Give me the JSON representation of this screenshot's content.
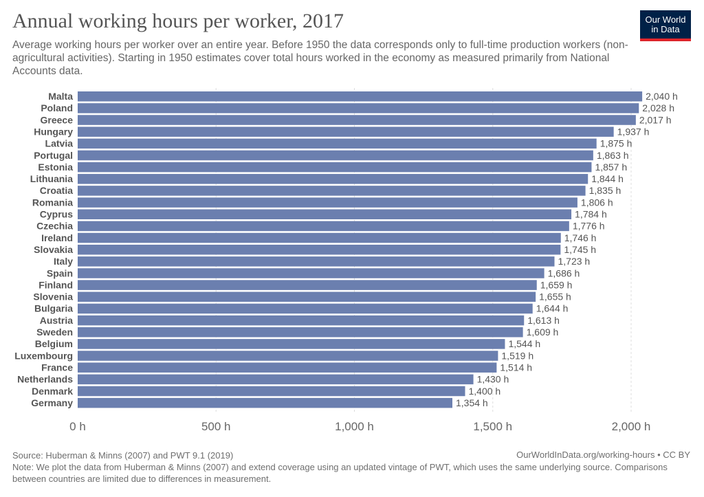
{
  "header": {
    "title": "Annual working hours per worker, 2017",
    "subtitle": "Average working hours per worker over an entire year. Before 1950 the data corresponds only to full-time production workers (non-agricultural activities). Starting in 1950 estimates cover total hours worked in the economy as measured primarily from National Accounts data."
  },
  "logo": {
    "line1": "Our World",
    "line2": "in Data"
  },
  "footer": {
    "source": "Source: Huberman & Minns (2007) and PWT 9.1 (2019)",
    "link": "OurWorldInData.org/working-hours • CC BY",
    "note": "Note: We plot the data from Huberman & Minns (2007) and extend coverage using an updated vintage of PWT, which uses the same underlying source. Comparisons between countries are limited due to differences in measurement."
  },
  "colors": {
    "bar": "#6b7faf",
    "grid": "#dddddd",
    "logo_bg": "#002147",
    "logo_accent": "#e0252b"
  },
  "chart_data": {
    "type": "bar",
    "orientation": "horizontal",
    "title": "Annual working hours per worker, 2017",
    "unit_suffix": " h",
    "xlim": [
      0,
      2100
    ],
    "xticks": [
      0,
      500,
      1000,
      1500,
      2000
    ],
    "xtick_labels": [
      "0 h",
      "500 h",
      "1,000 h",
      "1,500 h",
      "2,000 h"
    ],
    "grid": true,
    "categories": [
      "Malta",
      "Poland",
      "Greece",
      "Hungary",
      "Latvia",
      "Portugal",
      "Estonia",
      "Lithuania",
      "Croatia",
      "Romania",
      "Cyprus",
      "Czechia",
      "Ireland",
      "Slovakia",
      "Italy",
      "Spain",
      "Finland",
      "Slovenia",
      "Bulgaria",
      "Austria",
      "Sweden",
      "Belgium",
      "Luxembourg",
      "France",
      "Netherlands",
      "Denmark",
      "Germany"
    ],
    "values": [
      2040,
      2028,
      2017,
      1937,
      1875,
      1863,
      1857,
      1844,
      1835,
      1806,
      1784,
      1776,
      1746,
      1745,
      1723,
      1686,
      1659,
      1655,
      1644,
      1613,
      1609,
      1544,
      1519,
      1514,
      1430,
      1400,
      1354
    ],
    "value_labels": [
      "2,040 h",
      "2,028 h",
      "2,017 h",
      "1,937 h",
      "1,875 h",
      "1,863 h",
      "1,857 h",
      "1,844 h",
      "1,835 h",
      "1,806 h",
      "1,784 h",
      "1,776 h",
      "1,746 h",
      "1,745 h",
      "1,723 h",
      "1,686 h",
      "1,659 h",
      "1,655 h",
      "1,644 h",
      "1,613 h",
      "1,609 h",
      "1,544 h",
      "1,519 h",
      "1,514 h",
      "1,430 h",
      "1,400 h",
      "1,354 h"
    ]
  }
}
